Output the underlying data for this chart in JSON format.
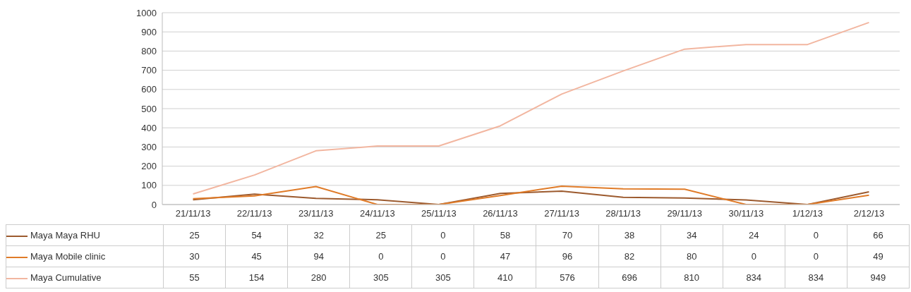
{
  "chart_data": {
    "type": "line",
    "categories": [
      "21/11/13",
      "22/11/13",
      "23/11/13",
      "24/11/13",
      "25/11/13",
      "26/11/13",
      "27/11/13",
      "28/11/13",
      "29/11/13",
      "30/11/13",
      "1/12/13",
      "2/12/13"
    ],
    "series": [
      {
        "name": "Maya Maya RHU",
        "color": "#9c5a2e",
        "values": [
          25,
          54,
          32,
          25,
          0,
          58,
          70,
          38,
          34,
          24,
          0,
          66
        ]
      },
      {
        "name": "Maya Mobile clinic",
        "color": "#e07b28",
        "values": [
          30,
          45,
          94,
          0,
          0,
          47,
          96,
          82,
          80,
          0,
          0,
          49
        ]
      },
      {
        "name": "Maya Cumulative",
        "color": "#f2b6a0",
        "values": [
          55,
          154,
          280,
          305,
          305,
          410,
          576,
          696,
          810,
          834,
          834,
          949
        ]
      }
    ],
    "ylim": [
      0,
      1000
    ],
    "yticks": [
      0,
      100,
      200,
      300,
      400,
      500,
      600,
      700,
      800,
      900,
      1000
    ],
    "grid": "y",
    "legend": "bottom",
    "data_labels": true,
    "marker": "none",
    "line_style": "solid"
  }
}
